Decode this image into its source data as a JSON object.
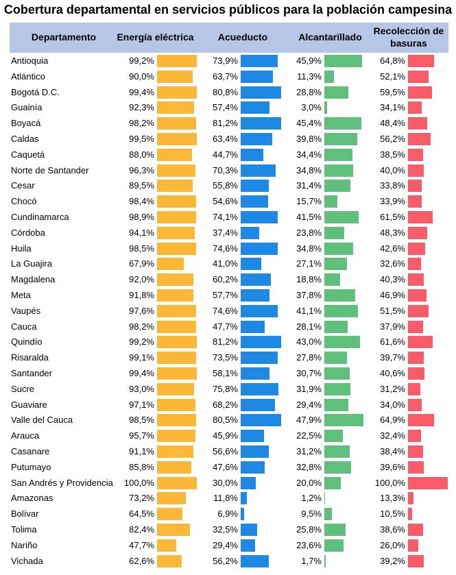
{
  "chart_data": {
    "type": "table",
    "title": "Cobertura departamental en servicios públicos para la población campesina",
    "columns": [
      "Departamento",
      "Energía eléctrica",
      "Acueducto",
      "Alcantarillado",
      "Recolección de basuras"
    ],
    "series_colors": [
      "#fbb735",
      "#1d89e4",
      "#5fc07c",
      "#f95b68"
    ],
    "header_color": "#b5c6e7",
    "rows": [
      {
        "departamento": "Antioquia",
        "values": [
          99.2,
          73.9,
          45.9,
          64.8
        ],
        "labels": [
          "99,2%",
          "73,9%",
          "45,9%",
          "64,8%"
        ]
      },
      {
        "departamento": "Atlántico",
        "values": [
          90.0,
          63.7,
          11.3,
          52.1
        ],
        "labels": [
          "90,0%",
          "63,7%",
          "11,3%",
          "52,1%"
        ]
      },
      {
        "departamento": "Bogotá D.C.",
        "values": [
          99.4,
          80.8,
          28.8,
          59.5
        ],
        "labels": [
          "99,4%",
          "80,8%",
          "28,8%",
          "59,5%"
        ]
      },
      {
        "departamento": "Guainía",
        "values": [
          92.3,
          57.4,
          3.0,
          34.1
        ],
        "labels": [
          "92,3%",
          "57,4%",
          "3,0%",
          "34,1%"
        ]
      },
      {
        "departamento": "Boyacá",
        "values": [
          98.2,
          81.2,
          45.4,
          48.4
        ],
        "labels": [
          "98,2%",
          "81,2%",
          "45,4%",
          "48,4%"
        ]
      },
      {
        "departamento": "Caldas",
        "values": [
          99.5,
          63.4,
          39.8,
          56.2
        ],
        "labels": [
          "99,5%",
          "63,4%",
          "39,8%",
          "56,2%"
        ]
      },
      {
        "departamento": "Caquetá",
        "values": [
          88.0,
          44.7,
          34.4,
          38.5
        ],
        "labels": [
          "88,0%",
          "44,7%",
          "34,4%",
          "38,5%"
        ]
      },
      {
        "departamento": "Norte de Santander",
        "values": [
          96.3,
          70.3,
          34.8,
          40.0
        ],
        "labels": [
          "96,3%",
          "70,3%",
          "34,8%",
          "40,0%"
        ]
      },
      {
        "departamento": "Cesar",
        "values": [
          89.5,
          55.8,
          31.4,
          33.8
        ],
        "labels": [
          "89,5%",
          "55,8%",
          "31,4%",
          "33,8%"
        ]
      },
      {
        "departamento": "Chocó",
        "values": [
          98.4,
          54.6,
          15.7,
          33.9
        ],
        "labels": [
          "98,4%",
          "54,6%",
          "15,7%",
          "33,9%"
        ]
      },
      {
        "departamento": "Cundinamarca",
        "values": [
          98.9,
          74.1,
          41.5,
          61.5
        ],
        "labels": [
          "98,9%",
          "74,1%",
          "41,5%",
          "61,5%"
        ]
      },
      {
        "departamento": "Córdoba",
        "values": [
          94.1,
          37.4,
          23.8,
          48.3
        ],
        "labels": [
          "94,1%",
          "37,4%",
          "23,8%",
          "48,3%"
        ]
      },
      {
        "departamento": "Huila",
        "values": [
          98.5,
          74.6,
          34.8,
          42.6
        ],
        "labels": [
          "98,5%",
          "74,6%",
          "34,8%",
          "42,6%"
        ]
      },
      {
        "departamento": "La Guajira",
        "values": [
          67.9,
          41.0,
          27.1,
          32.6
        ],
        "labels": [
          "67,9%",
          "41,0%",
          "27,1%",
          "32,6%"
        ]
      },
      {
        "departamento": "Magdalena",
        "values": [
          92.0,
          60.2,
          18.8,
          40.3
        ],
        "labels": [
          "92,0%",
          "60,2%",
          "18,8%",
          "40,3%"
        ]
      },
      {
        "departamento": "Meta",
        "values": [
          91.8,
          57.7,
          37.8,
          46.9
        ],
        "labels": [
          "91,8%",
          "57,7%",
          "37,8%",
          "46,9%"
        ]
      },
      {
        "departamento": "Vaupés",
        "values": [
          97.6,
          74.6,
          41.1,
          51.5
        ],
        "labels": [
          "97,6%",
          "74,6%",
          "41,1%",
          "51,5%"
        ]
      },
      {
        "departamento": "Cauca",
        "values": [
          98.2,
          47.7,
          28.1,
          37.9
        ],
        "labels": [
          "98,2%",
          "47,7%",
          "28,1%",
          "37,9%"
        ]
      },
      {
        "departamento": "Quindío",
        "values": [
          99.2,
          81.2,
          43.0,
          61.6
        ],
        "labels": [
          "99,2%",
          "81,2%",
          "43,0%",
          "61,6%"
        ]
      },
      {
        "departamento": "Risaralda",
        "values": [
          99.1,
          73.5,
          27.8,
          39.7
        ],
        "labels": [
          "99,1%",
          "73,5%",
          "27,8%",
          "39,7%"
        ]
      },
      {
        "departamento": "Santander",
        "values": [
          99.4,
          58.1,
          30.7,
          40.6
        ],
        "labels": [
          "99,4%",
          "58,1%",
          "30,7%",
          "40,6%"
        ]
      },
      {
        "departamento": "Sucre",
        "values": [
          93.0,
          75.8,
          31.9,
          31.2
        ],
        "labels": [
          "93,0%",
          "75,8%",
          "31,9%",
          "31,2%"
        ]
      },
      {
        "departamento": "Guaviare",
        "values": [
          97.1,
          68.2,
          29.4,
          34.0
        ],
        "labels": [
          "97,1%",
          "68,2%",
          "29,4%",
          "34,0%"
        ]
      },
      {
        "departamento": "Valle del Cauca",
        "values": [
          98.5,
          80.5,
          47.9,
          64.9
        ],
        "labels": [
          "98,5%",
          "80,5%",
          "47,9%",
          "64,9%"
        ]
      },
      {
        "departamento": "Arauca",
        "values": [
          95.7,
          45.9,
          22.5,
          32.4
        ],
        "labels": [
          "95,7%",
          "45,9%",
          "22,5%",
          "32,4%"
        ]
      },
      {
        "departamento": "Casanare",
        "values": [
          91.1,
          56.6,
          31.2,
          38.4
        ],
        "labels": [
          "91,1%",
          "56,6%",
          "31,2%",
          "38,4%"
        ]
      },
      {
        "departamento": "Putumayo",
        "values": [
          85.8,
          47.6,
          32.8,
          39.6
        ],
        "labels": [
          "85,8%",
          "47,6%",
          "32,8%",
          "39,6%"
        ]
      },
      {
        "departamento": "San Andrés y Providencia",
        "values": [
          100.0,
          30.0,
          20.0,
          100.0
        ],
        "labels": [
          "100,0%",
          "30,0%",
          "20,0%",
          "100,0%"
        ]
      },
      {
        "departamento": "Amazonas",
        "values": [
          73.2,
          11.8,
          1.2,
          13.3
        ],
        "labels": [
          "73,2%",
          "11,8%",
          "1,2%",
          "13,3%"
        ]
      },
      {
        "departamento": "Bolívar",
        "values": [
          64.5,
          6.9,
          9.5,
          10.5
        ],
        "labels": [
          "64,5%",
          "6,9%",
          "9,5%",
          "10,5%"
        ]
      },
      {
        "departamento": "Tolima",
        "values": [
          82.4,
          32.5,
          25.8,
          38.6
        ],
        "labels": [
          "82,4%",
          "32,5%",
          "25,8%",
          "38,6%"
        ]
      },
      {
        "departamento": "Nariño",
        "values": [
          47.7,
          29.4,
          23.6,
          26.0
        ],
        "labels": [
          "47,7%",
          "29,4%",
          "23,6%",
          "26,0%"
        ]
      },
      {
        "departamento": "Vichada",
        "values": [
          62.6,
          56.2,
          1.7,
          39.2
        ],
        "labels": [
          "62,6%",
          "56,2%",
          "1,7%",
          "39,2%"
        ]
      }
    ]
  }
}
